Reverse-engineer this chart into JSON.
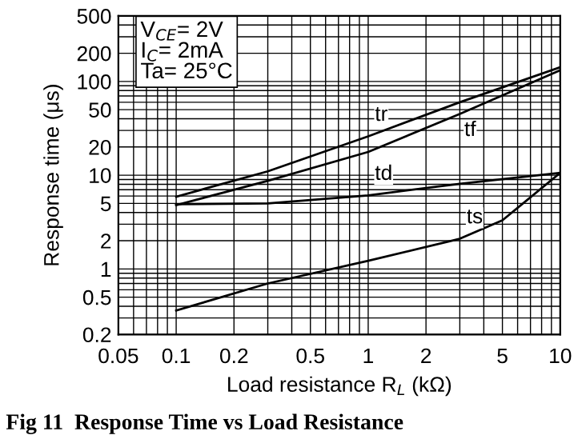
{
  "chart_data": {
    "type": "line",
    "title": "Fig 11  Response Time vs Load Resistance",
    "xlabel": "Load resistance R$_{L}$ (kΩ)",
    "ylabel": "Response time (μs)",
    "log": "xy",
    "xlim": [
      0.05,
      10
    ],
    "ylim": [
      0.2,
      500
    ],
    "xticks": [
      0.05,
      0.1,
      0.2,
      0.5,
      1,
      2,
      5,
      10
    ],
    "yticks": [
      0.2,
      0.5,
      1,
      2,
      5,
      10,
      20,
      50,
      100,
      200,
      500
    ],
    "grid": true,
    "legend": false,
    "marker": "none",
    "line_style": "solid",
    "annotations": [
      "V$_{CE}$= 2V",
      "I$_{C}$= 2mA",
      "Ta= 25°C"
    ],
    "series": [
      {
        "name": "tr",
        "color": "#000000",
        "x": [
          0.1,
          0.3,
          1,
          3,
          10
        ],
        "values": [
          5.9,
          11,
          26,
          60,
          142
        ]
      },
      {
        "name": "tf",
        "color": "#000000",
        "x": [
          0.1,
          0.3,
          1,
          3,
          10
        ],
        "values": [
          4.8,
          8.7,
          17.7,
          45,
          132
        ]
      },
      {
        "name": "td",
        "color": "#000000",
        "x": [
          0.1,
          0.3,
          1,
          3,
          10
        ],
        "values": [
          4.9,
          5,
          6.1,
          8.1,
          10.6
        ]
      },
      {
        "name": "ts",
        "color": "#000000",
        "x": [
          0.1,
          0.3,
          1,
          3,
          5,
          10
        ],
        "values": [
          0.36,
          0.7,
          1.22,
          2.1,
          3.3,
          10.6
        ]
      }
    ]
  }
}
